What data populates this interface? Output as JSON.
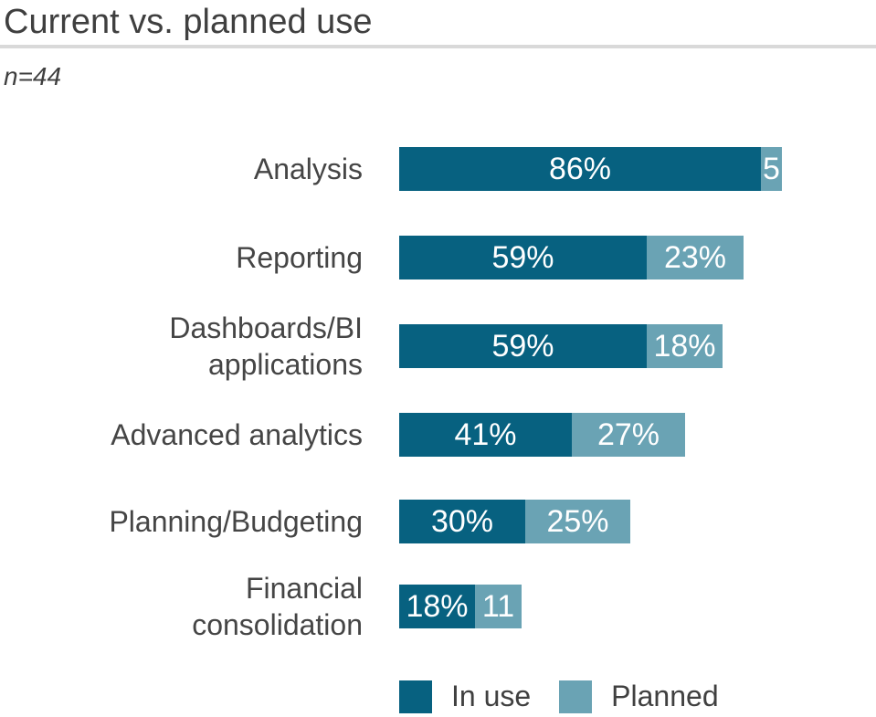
{
  "header": {
    "title": "Current vs. planned use",
    "sample_size": "n=44"
  },
  "colors": {
    "in_use": "#076180",
    "planned": "#6AA3B4",
    "title_text": "#3f3f3f",
    "category_text": "#454545",
    "legend_text": "#404040",
    "divider": "#d9d9d9",
    "value_text": "#ffffff"
  },
  "legend": {
    "in_use_label": "In use",
    "planned_label": "Planned"
  },
  "chart_data": {
    "type": "bar",
    "orientation": "horizontal",
    "stacked": true,
    "title": "Current vs. planned use",
    "subtitle": "n=44",
    "unit": "percent",
    "xlim": [
      0,
      100
    ],
    "grid": false,
    "legend_position": "bottom",
    "categories": [
      "Analysis",
      "Reporting",
      "Dashboards/BI\napplications",
      "Advanced analytics",
      "Planning/Budgeting",
      "Financial\nconsolidation"
    ],
    "series": [
      {
        "name": "In use",
        "color_key": "in_use",
        "values": [
          86,
          59,
          59,
          41,
          30,
          18
        ],
        "display_labels": [
          "86%",
          "59%",
          "59%",
          "41%",
          "30%",
          "18%"
        ]
      },
      {
        "name": "Planned",
        "color_key": "planned",
        "values": [
          5,
          23,
          18,
          27,
          25,
          11
        ],
        "display_labels": [
          "5",
          "23%",
          "18%",
          "27%",
          "25%",
          "11"
        ]
      }
    ]
  }
}
